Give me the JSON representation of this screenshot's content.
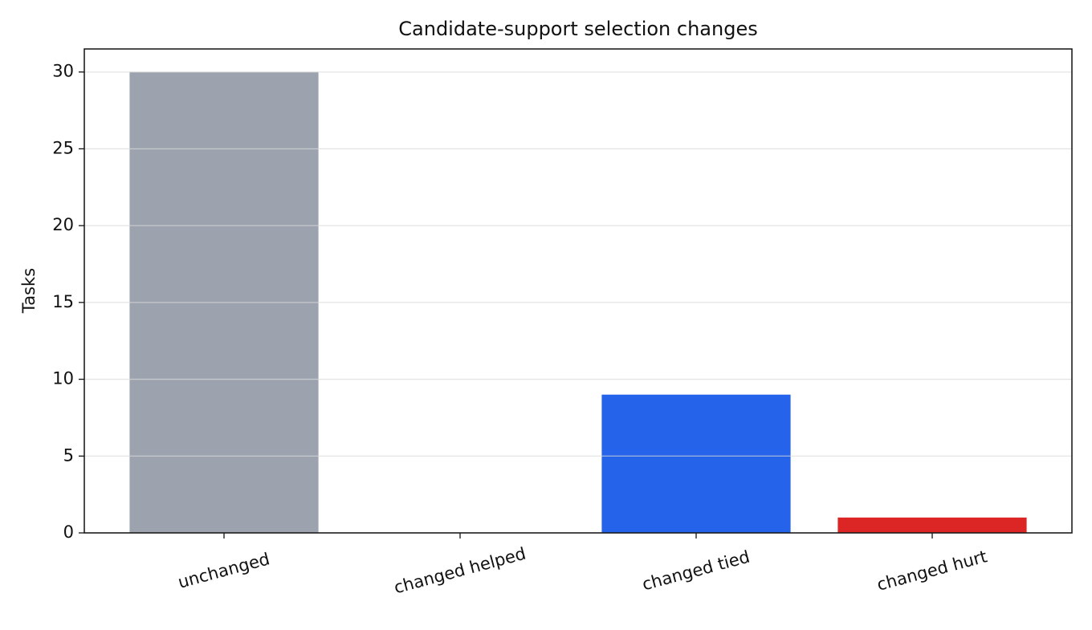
{
  "chart_data": {
    "type": "bar",
    "title": "Candidate-support selection changes",
    "y_label": "Tasks",
    "categories": [
      "unchanged",
      "changed helped",
      "changed tied",
      "changed hurt"
    ],
    "values": [
      30,
      0,
      9,
      1
    ],
    "colors": [
      "#9ca3af",
      "#16a34a",
      "#2563eb",
      "#dc2626"
    ],
    "ylim": [
      0,
      31.5
    ],
    "yticks": [
      0,
      5,
      10,
      15,
      20,
      25,
      30
    ],
    "grid": true
  }
}
